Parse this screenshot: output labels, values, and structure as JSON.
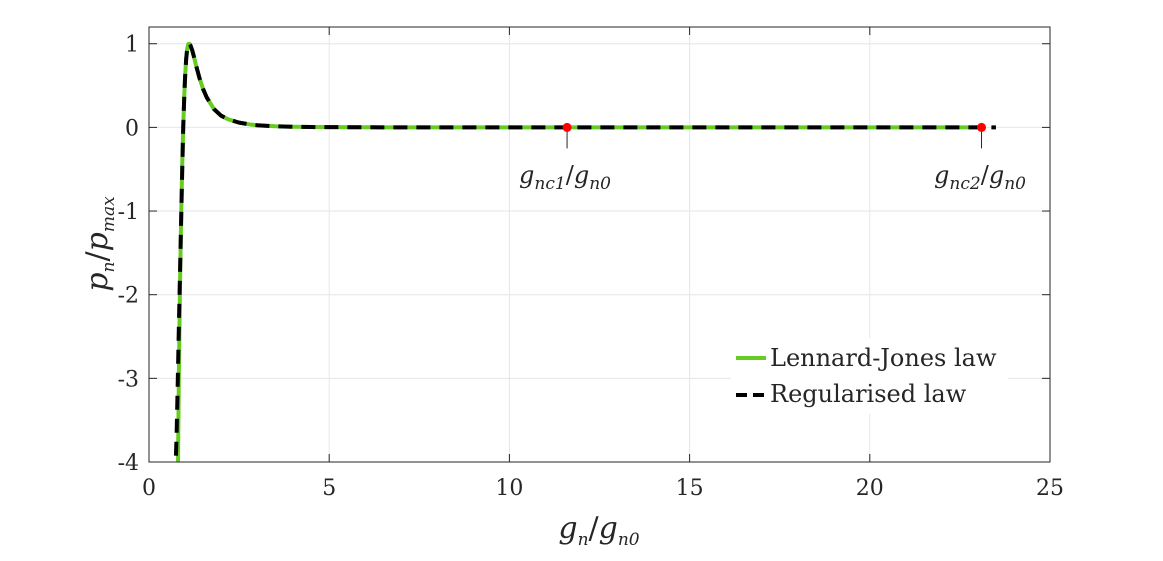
{
  "chart_data": {
    "type": "line",
    "xlabel": {
      "base": "g",
      "sub": "n",
      "sep": "/",
      "base2": "g",
      "sub2": "n0"
    },
    "ylabel": {
      "base": "p",
      "sub": "n",
      "sep": "/",
      "base2": "p",
      "sub2": "max"
    },
    "xlim": [
      0,
      25
    ],
    "ylim": [
      -4,
      1.2
    ],
    "xticks": [
      0,
      5,
      10,
      15,
      20,
      25
    ],
    "xtick_labels": [
      "0",
      "5",
      "10",
      "15",
      "20",
      "25"
    ],
    "yticks": [
      1,
      0,
      -1,
      -2,
      -3,
      -4
    ],
    "ytick_labels": [
      "1",
      "0",
      "-1",
      "-2",
      "-3",
      "-4"
    ],
    "grid": true,
    "legend_position": "bottom-right",
    "series": [
      {
        "name": "Lennard-Jones law",
        "color": "#66cc22",
        "style": "solid",
        "x": [
          0.8,
          0.83,
          0.86,
          0.89,
          0.92,
          0.95,
          0.98,
          1.0,
          1.03,
          1.06,
          1.09,
          1.12,
          1.15,
          1.2,
          1.25,
          1.3,
          1.4,
          1.5,
          1.6,
          1.8,
          2.0,
          2.2,
          2.5,
          2.8,
          3.0,
          3.5,
          4.0,
          4.5,
          5.0,
          6.0,
          7.0,
          8.0,
          10.0,
          11.6,
          13.0,
          15.0,
          18.0,
          20.0,
          23.1
        ],
        "y": [
          -4.2,
          -2.93,
          -1.91,
          -1.11,
          -0.48,
          0.01,
          0.39,
          0.59,
          0.81,
          0.94,
          0.995,
          1.0,
          0.98,
          0.92,
          0.84,
          0.75,
          0.59,
          0.46,
          0.36,
          0.22,
          0.14,
          0.096,
          0.057,
          0.035,
          0.026,
          0.013,
          0.007,
          0.004,
          0.003,
          0.001,
          0.0005,
          0.0002,
          0.0,
          0.0,
          0.0,
          0.0,
          0.0,
          0.0,
          0.0
        ]
      },
      {
        "name": "Regularised law",
        "color": "#000000",
        "style": "dashed",
        "x": [
          0.73,
          0.77,
          0.8,
          0.83,
          0.86,
          0.89,
          0.92,
          0.95,
          0.98,
          1.0,
          1.03,
          1.06,
          1.09,
          1.12,
          1.15,
          1.2,
          1.25,
          1.3,
          1.4,
          1.5,
          1.6,
          1.8,
          2.0,
          2.2,
          2.5,
          2.8,
          3.0,
          3.5,
          4.0,
          4.5,
          5.0,
          6.0,
          7.0,
          8.0,
          10.0,
          11.6,
          13.0,
          15.0,
          18.0,
          20.0,
          23.1,
          23.5
        ],
        "y": [
          -4.2,
          -3.6,
          -3.0,
          -2.35,
          -1.75,
          -1.15,
          -0.55,
          0.01,
          0.39,
          0.59,
          0.81,
          0.94,
          0.995,
          1.0,
          0.98,
          0.92,
          0.84,
          0.75,
          0.59,
          0.46,
          0.36,
          0.22,
          0.14,
          0.096,
          0.057,
          0.035,
          0.026,
          0.013,
          0.007,
          0.004,
          0.003,
          0.001,
          0.0005,
          0.0002,
          0.0,
          0.0,
          0.0,
          0.0,
          0.0,
          0.0,
          0.0,
          0.0
        ]
      }
    ],
    "markers": [
      {
        "x": 11.6,
        "y": 0,
        "color": "#ff0000",
        "label": {
          "base": "g",
          "sub": "nc1",
          "sep": "/",
          "base2": "g",
          "sub2": "n0"
        }
      },
      {
        "x": 23.1,
        "y": 0,
        "color": "#ff0000",
        "label": {
          "base": "g",
          "sub": "nc2",
          "sep": "/",
          "base2": "g",
          "sub2": "n0"
        }
      }
    ]
  }
}
